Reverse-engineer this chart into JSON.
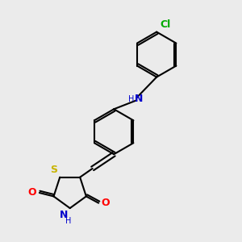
{
  "bg_color": "#ebebeb",
  "bond_color": "#000000",
  "bond_width": 1.5,
  "S_color": "#c8b400",
  "N_color": "#0000cc",
  "O_color": "#ff0000",
  "Cl_color": "#00aa00",
  "font_size": 8,
  "figsize": [
    3.0,
    3.0
  ],
  "dpi": 100,
  "xlim": [
    0,
    10
  ],
  "ylim": [
    0,
    10
  ]
}
